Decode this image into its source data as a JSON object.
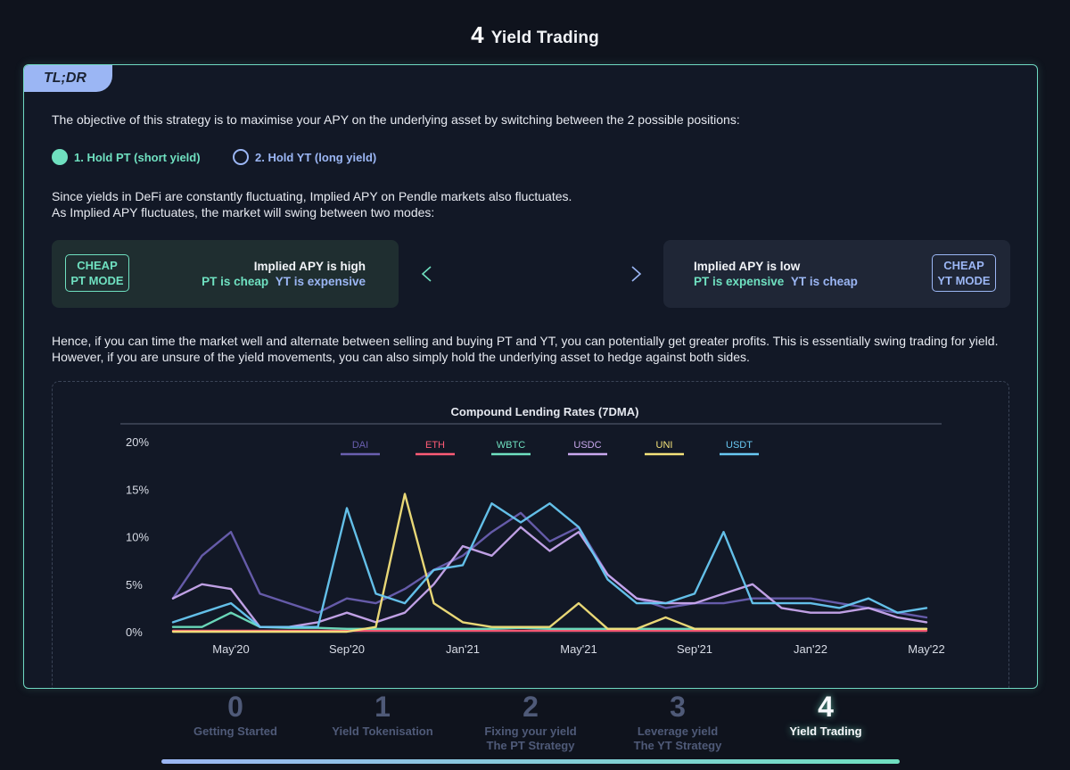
{
  "header": {
    "step_number": "4",
    "title": "Yield Trading"
  },
  "tldr": {
    "label": "TL;DR"
  },
  "intro": "The objective of this strategy is to maximise your APY on the underlying asset by switching between the 2 possible positions:",
  "positions": [
    {
      "label": "1. Hold PT (short yield)"
    },
    {
      "label": "2. Hold YT (long yield)"
    }
  ],
  "fluct_line1": "Since yields in DeFi are constantly fluctuating, Implied APY on Pendle markets also fluctuates.",
  "fluct_line2": "As Implied APY fluctuates, the market will swing between two modes:",
  "modes": {
    "pt": {
      "badge_line1": "CHEAP",
      "badge_line2": "PT MODE",
      "heading": "Implied APY is high",
      "left_text": "PT is cheap",
      "right_text": "YT is expensive"
    },
    "yt": {
      "badge_line1": "CHEAP",
      "badge_line2": "YT MODE",
      "heading": "Implied APY is low",
      "left_text": "PT is expensive",
      "right_text": "YT is cheap"
    }
  },
  "hence_line1": "Hence, if you can time the market well and alternate between selling and buying PT and YT, you can potentially get greater profits. This is essentially swing trading for yield.",
  "hence_line2": "However, if you are unsure of the yield movements, you can also simply hold the underlying asset to hedge against both sides.",
  "chart_data": {
    "type": "line",
    "title": "Compound Lending Rates (7DMA)",
    "xlabel": "",
    "ylabel": "",
    "ylim": [
      0,
      20
    ],
    "y_ticks": [
      "0%",
      "5%",
      "10%",
      "15%",
      "20%"
    ],
    "x_ticks": [
      "May'20",
      "Sep'20",
      "Jan'21",
      "May'21",
      "Sep'21",
      "Jan'22",
      "May'22"
    ],
    "x": [
      "Mar'20",
      "Apr'20",
      "May'20",
      "Jun'20",
      "Jul'20",
      "Aug'20",
      "Sep'20",
      "Oct'20",
      "Nov'20",
      "Dec'20",
      "Jan'21",
      "Feb'21",
      "Mar'21",
      "Apr'21",
      "May'21",
      "Jun'21",
      "Jul'21",
      "Aug'21",
      "Sep'21",
      "Oct'21",
      "Nov'21",
      "Dec'21",
      "Jan'22",
      "Feb'22",
      "Mar'22",
      "Apr'22",
      "May'22"
    ],
    "series": [
      {
        "name": "DAI",
        "color": "#6a5fb0",
        "values": [
          3.5,
          8,
          10.5,
          4,
          3,
          2,
          3.5,
          3,
          4.5,
          6.5,
          8,
          10.5,
          12.5,
          9.5,
          11,
          6,
          3.5,
          2.5,
          3,
          3,
          3.5,
          3.5,
          3.5,
          3,
          2.5,
          2,
          1.5
        ]
      },
      {
        "name": "ETH",
        "color": "#ff5b76",
        "values": [
          0.1,
          0.1,
          0.1,
          0.1,
          0.1,
          0.1,
          0.1,
          0.1,
          0.1,
          0.1,
          0.1,
          0.1,
          0.1,
          0.1,
          0.1,
          0.1,
          0.1,
          0.1,
          0.1,
          0.1,
          0.1,
          0.1,
          0.1,
          0.1,
          0.1,
          0.1,
          0.1
        ]
      },
      {
        "name": "WBTC",
        "color": "#6fe0c0",
        "values": [
          0.5,
          0.5,
          2,
          0.5,
          0.4,
          0.4,
          0.3,
          0.3,
          0.3,
          0.3,
          0.3,
          0.3,
          0.4,
          0.3,
          0.3,
          0.3,
          0.3,
          0.3,
          0.3,
          0.3,
          0.3,
          0.3,
          0.3,
          0.3,
          0.3,
          0.3,
          0.3
        ]
      },
      {
        "name": "USDC",
        "color": "#c9a8ee",
        "values": [
          3.5,
          5,
          4.5,
          0.5,
          0.5,
          1,
          2,
          1,
          2,
          5,
          9,
          8,
          11,
          8.5,
          10.5,
          6,
          3.5,
          3,
          3,
          4,
          5,
          2.5,
          2,
          2,
          2.5,
          1.5,
          1
        ]
      },
      {
        "name": "UNI",
        "color": "#f4e27a",
        "values": [
          0,
          0,
          0,
          0,
          0,
          0,
          0,
          0.5,
          14.5,
          3,
          1,
          0.5,
          0.5,
          0.5,
          3,
          0.3,
          0.3,
          1.5,
          0.3,
          0.3,
          0.3,
          0.3,
          0.3,
          0.3,
          0.3,
          0.3,
          0.3
        ]
      },
      {
        "name": "USDT",
        "color": "#68c8f2",
        "values": [
          1,
          2,
          3,
          0.5,
          0.5,
          0.5,
          13,
          4,
          3,
          6.5,
          7,
          13.5,
          11.5,
          13.5,
          11,
          5.5,
          3,
          3,
          4,
          10.5,
          3,
          3,
          3,
          2.5,
          3.5,
          2,
          2.5
        ]
      }
    ]
  },
  "steps": [
    {
      "number": "0",
      "label_line1": "Getting Started",
      "label_line2": ""
    },
    {
      "number": "1",
      "label_line1": "Yield Tokenisation",
      "label_line2": ""
    },
    {
      "number": "2",
      "label_line1": "Fixing your yield",
      "label_line2": "The PT Strategy"
    },
    {
      "number": "3",
      "label_line1": "Leverage yield",
      "label_line2": "The YT Strategy"
    },
    {
      "number": "4",
      "label_line1": "Yield Trading",
      "label_line2": ""
    }
  ]
}
